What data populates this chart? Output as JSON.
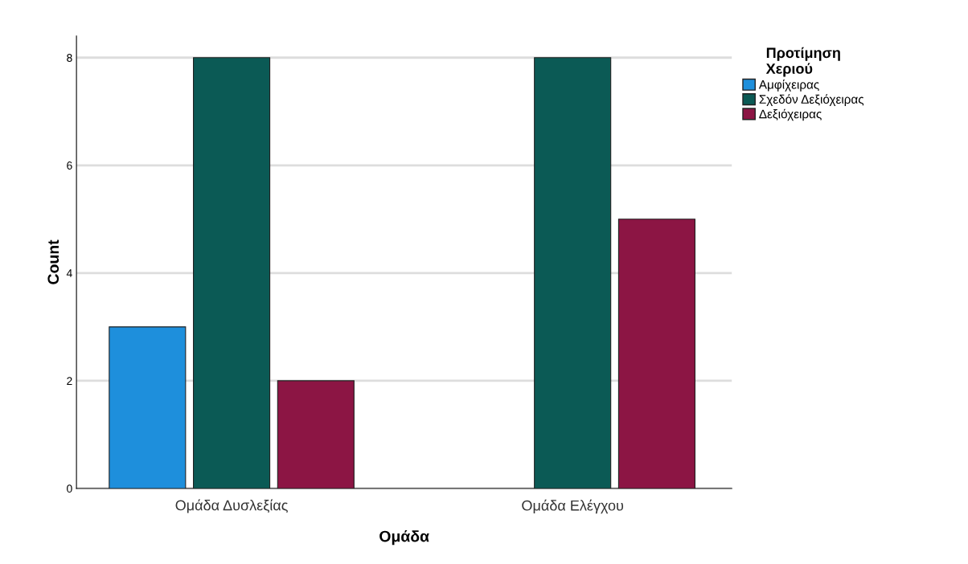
{
  "chart_data": {
    "type": "bar",
    "xlabel": "Ομάδα",
    "ylabel": "Count",
    "legend_title": "Προτίμηση\nΧεριού",
    "categories": [
      "Ομάδα Δυσλεξίας",
      "Ομάδα Ελέγχου"
    ],
    "series": [
      {
        "name": "Αμφίχειρας",
        "color": "#1e8fdc",
        "values": [
          3,
          null
        ]
      },
      {
        "name": "Σχεδόν Δεξιόχειρας",
        "color": "#0b5a55",
        "values": [
          8,
          8
        ]
      },
      {
        "name": "Δεξιόχειρας",
        "color": "#8c1544",
        "values": [
          2,
          5
        ]
      }
    ],
    "ylim": [
      0,
      8.4
    ],
    "yticks": [
      0,
      2,
      4,
      6,
      8
    ],
    "grid": "y",
    "legend": "top right"
  }
}
